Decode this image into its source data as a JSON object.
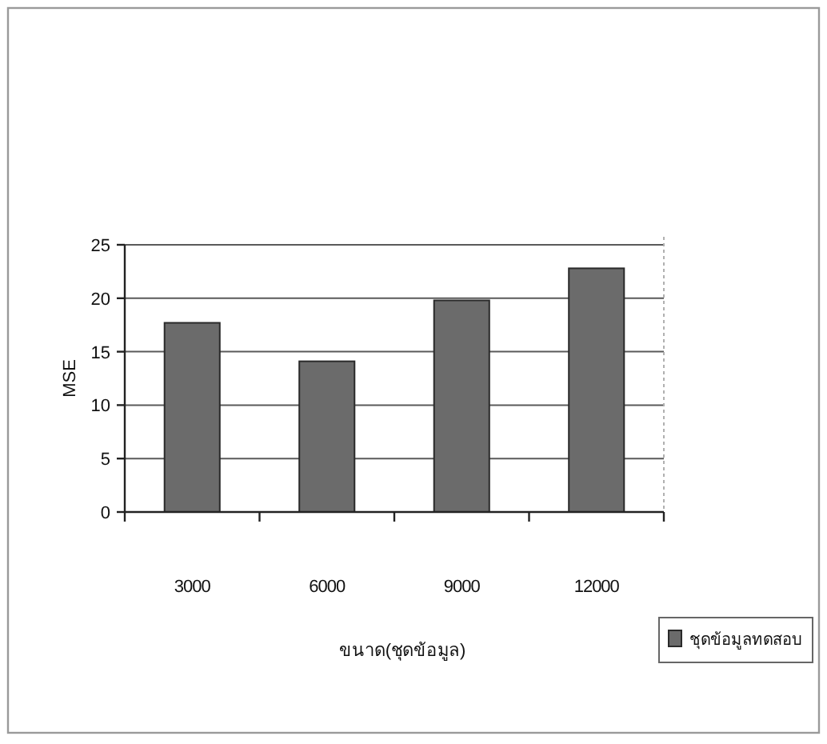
{
  "chart_data": {
    "type": "bar",
    "xlabel": "ขนาด(ชุดข้อมูล)",
    "ylabel": "MSE",
    "categories": [
      "3000",
      "6000",
      "9000",
      "12000"
    ],
    "series": [
      {
        "name": "ชุดข้อมูลทดสอบ",
        "color": "#6b6b6b",
        "values": [
          17.7,
          14.1,
          19.8,
          22.8
        ]
      }
    ],
    "ylim": [
      0,
      25
    ],
    "yticks": [
      0,
      5,
      10,
      15,
      20,
      25
    ],
    "grid": "y",
    "legend": "bottom right"
  }
}
